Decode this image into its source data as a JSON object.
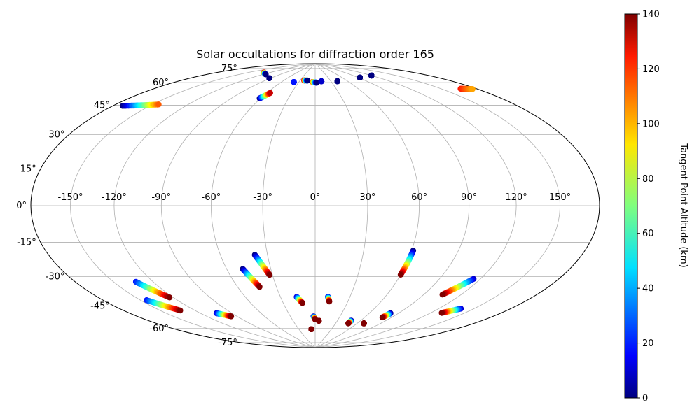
{
  "chart_data": {
    "type": "scatter",
    "projection": "hammer",
    "title": "Solar occultations for diffraction order 165",
    "grid": true,
    "lon_ticks": [
      -150,
      -120,
      -90,
      -60,
      -30,
      0,
      30,
      60,
      90,
      120,
      150
    ],
    "lat_ticks": [
      -75,
      -60,
      -45,
      -30,
      -15,
      0,
      15,
      30,
      45,
      60,
      75
    ],
    "lon_tick_labels": [
      "-150°",
      "-120°",
      "-90°",
      "-60°",
      "-30°",
      "0°",
      "30°",
      "60°",
      "90°",
      "120°",
      "150°"
    ],
    "lat_tick_labels": [
      "-75°",
      "-60°",
      "-45°",
      "-30°",
      "-15°",
      "0°",
      "15°",
      "30°",
      "45°",
      "60°",
      "75°"
    ],
    "colorbar": {
      "label": "Tangent Point Altitude (km)",
      "vmin": 0,
      "vmax": 140,
      "ticks": [
        0,
        20,
        40,
        60,
        80,
        100,
        120,
        140
      ],
      "tick_labels": [
        "0",
        "20",
        "40",
        "60",
        "80",
        "100",
        "120",
        "140"
      ],
      "colormap": "jet"
    },
    "series": [
      {
        "lon": [
          -172,
          -145
        ],
        "lat": [
          46,
          51
        ],
        "alt": [
          0,
          110
        ]
      },
      {
        "lon": [
          -61,
          -56
        ],
        "lat": [
          63,
          67
        ],
        "alt": [
          0,
          130
        ]
      },
      {
        "lon": [
          -130,
          -116
        ],
        "lat": [
          78,
          77.5
        ],
        "alt": [
          130,
          0
        ]
      },
      {
        "lon": [
          -92,
          -92
        ],
        "lat": [
          76,
          76
        ],
        "alt": [
          0,
          0
        ]
      },
      {
        "lon": [
          -39,
          -39
        ],
        "lat": [
          75.5,
          75.5
        ],
        "alt": [
          20,
          20
        ]
      },
      {
        "lon": [
          -22,
          -15
        ],
        "lat": [
          77,
          77
        ],
        "alt": [
          130,
          0
        ]
      },
      {
        "lon": [
          -5,
          3
        ],
        "lat": [
          76,
          75.5
        ],
        "alt": [
          120,
          0
        ]
      },
      {
        "lon": [
          12,
          12
        ],
        "lat": [
          76.5,
          76.5
        ],
        "alt": [
          10,
          10
        ]
      },
      {
        "lon": [
          42,
          42
        ],
        "lat": [
          76,
          76
        ],
        "alt": [
          0,
          0
        ]
      },
      {
        "lon": [
          93,
          93
        ],
        "lat": [
          76.5,
          76.5
        ],
        "alt": [
          0,
          0
        ]
      },
      {
        "lon": [
          120,
          120
        ],
        "lat": [
          76,
          76
        ],
        "alt": [
          0,
          0
        ]
      },
      {
        "lon": [
          167,
          176
        ],
        "lat": [
          58,
          56
        ],
        "alt": [
          120,
          100
        ]
      },
      {
        "lon": [
          -133,
          -123
        ],
        "lat": [
          -38,
          -48
        ],
        "alt": [
          20,
          140
        ]
      },
      {
        "lon": [
          -145,
          -133
        ],
        "lat": [
          -47,
          -55
        ],
        "alt": [
          20,
          140
        ]
      },
      {
        "lon": [
          -105,
          -96
        ],
        "lat": [
          -60,
          -63
        ],
        "alt": [
          10,
          140
        ]
      },
      {
        "lon": [
          -49,
          -43
        ],
        "lat": [
          -36,
          -47
        ],
        "alt": [
          0,
          140
        ]
      },
      {
        "lon": [
          -38,
          -32
        ],
        "lat": [
          -28,
          -40
        ],
        "alt": [
          0,
          140
        ]
      },
      {
        "lon": [
          -16,
          -12
        ],
        "lat": [
          -54,
          -58
        ],
        "alt": [
          10,
          140
        ]
      },
      {
        "lon": [
          11,
          13
        ],
        "lat": [
          -54,
          -57
        ],
        "alt": [
          10,
          140
        ]
      },
      {
        "lon": [
          -2,
          0
        ],
        "lat": [
          -67,
          -69
        ],
        "alt": [
          0,
          140
        ]
      },
      {
        "lon": [
          5,
          5
        ],
        "lat": [
          -70,
          -70
        ],
        "alt": [
          140,
          140
        ]
      },
      {
        "lon": [
          -7,
          -7
        ],
        "lat": [
          -76,
          -76
        ],
        "alt": [
          140,
          140
        ]
      },
      {
        "lon": [
          48,
          48
        ],
        "lat": [
          -69,
          -71
        ],
        "alt": [
          0,
          140
        ]
      },
      {
        "lon": [
          69,
          69
        ],
        "lat": [
          -70,
          -70
        ],
        "alt": [
          140,
          140
        ]
      },
      {
        "lon": [
          61,
          60
        ],
        "lat": [
          -25,
          -39
        ],
        "alt": [
          0,
          140
        ]
      },
      {
        "lon": [
          82,
          80
        ],
        "lat": [
          -62,
          -65
        ],
        "alt": [
          0,
          140
        ]
      },
      {
        "lon": [
          115,
          105
        ],
        "lat": [
          -38,
          -48
        ],
        "alt": [
          10,
          140
        ]
      },
      {
        "lon": [
          139,
          130
        ],
        "lat": [
          -53,
          -57
        ],
        "alt": [
          10,
          140
        ]
      }
    ]
  }
}
